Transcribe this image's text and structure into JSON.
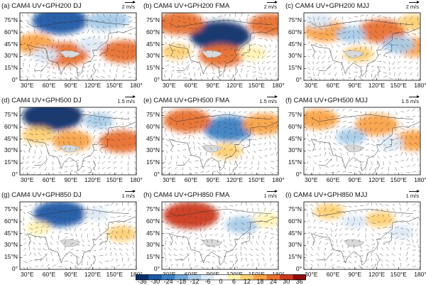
{
  "panels": [
    {
      "title": "(a) CAM4 UV+GPH200 DJ",
      "ref": "2 m/s",
      "lats": [
        "75°N",
        "60°N",
        "45°N",
        "30°N",
        "15°N",
        "0°"
      ],
      "lons": [
        "30°E",
        "60°E",
        "90°E",
        "120°E",
        "150°E",
        "180°"
      ],
      "anomalies": [
        {
          "lon": 75,
          "lat": 75,
          "v": -30
        },
        {
          "lon": 135,
          "lat": 74,
          "v": -14
        },
        {
          "lon": 150,
          "lat": 76,
          "v": -10
        },
        {
          "lon": 40,
          "lat": 46,
          "v": 18
        },
        {
          "lon": 82,
          "lat": 33,
          "v": 24
        },
        {
          "lon": 162,
          "lat": 36,
          "v": 22
        },
        {
          "lon": 118,
          "lat": 45,
          "v": -8
        },
        {
          "lon": 55,
          "lat": 32,
          "v": -8
        }
      ]
    },
    {
      "title": "(b) CAM4 UV+GPH200 FMA",
      "ref": "2 m/s",
      "lats": [
        "75°N",
        "60°N",
        "45°N",
        "30°N",
        "15°N",
        "0°"
      ],
      "lons": [
        "30°E",
        "60°E",
        "90°E",
        "120°E",
        "150°E",
        "180°"
      ],
      "anomalies": [
        {
          "lon": 100,
          "lat": 56,
          "v": -34
        },
        {
          "lon": 45,
          "lat": 72,
          "v": 24
        },
        {
          "lon": 170,
          "lat": 70,
          "v": 22
        },
        {
          "lon": 102,
          "lat": 31,
          "v": 22
        },
        {
          "lon": 40,
          "lat": 36,
          "v": 10
        },
        {
          "lon": 145,
          "lat": 34,
          "v": 8
        }
      ]
    },
    {
      "title": "(c) CAM4 UV+GPH200 MJJ",
      "ref": "2 m/s",
      "lats": [
        "75°N",
        "60°N",
        "45°N",
        "30°N",
        "15°N",
        "0°"
      ],
      "lons": [
        "30°E",
        "60°E",
        "90°E",
        "120°E",
        "150°E",
        "180°"
      ],
      "anomalies": [
        {
          "lon": 50,
          "lat": 62,
          "v": 20
        },
        {
          "lon": 127,
          "lat": 62,
          "v": 24
        },
        {
          "lon": 172,
          "lat": 42,
          "v": 16
        },
        {
          "lon": 150,
          "lat": 45,
          "v": -12
        },
        {
          "lon": 85,
          "lat": 58,
          "v": -10
        },
        {
          "lon": 95,
          "lat": 33,
          "v": 10
        },
        {
          "lon": 40,
          "lat": 75,
          "v": -8
        },
        {
          "lon": 170,
          "lat": 73,
          "v": 10
        }
      ]
    },
    {
      "title": "(d) CAM4 UV+GPH500 DJ",
      "ref": "1.5 m/s",
      "lats": [
        "75°N",
        "60°N",
        "45°N",
        "30°N",
        "15°N",
        "0°"
      ],
      "lons": [
        "30°E",
        "60°E",
        "90°E",
        "120°E",
        "150°E",
        "180°"
      ],
      "anomalies": [
        {
          "lon": 65,
          "lat": 74,
          "v": -34
        },
        {
          "lon": 92,
          "lat": 43,
          "v": 18
        },
        {
          "lon": 160,
          "lat": 42,
          "v": 22
        },
        {
          "lon": 45,
          "lat": 50,
          "v": 12
        },
        {
          "lon": 128,
          "lat": 68,
          "v": -10
        }
      ]
    },
    {
      "title": "(e) CAM4 UV+GPH500 FMA",
      "ref": "1.5 m/s",
      "lats": [
        "75°N",
        "60°N",
        "45°N",
        "30°N",
        "15°N",
        "0°"
      ],
      "lons": [
        "30°E",
        "60°E",
        "90°E",
        "120°E",
        "150°E",
        "180°"
      ],
      "anomalies": [
        {
          "lon": 112,
          "lat": 58,
          "v": -26
        },
        {
          "lon": 55,
          "lat": 68,
          "v": 24
        },
        {
          "lon": 160,
          "lat": 64,
          "v": 20
        },
        {
          "lon": 110,
          "lat": 30,
          "v": 10
        }
      ]
    },
    {
      "title": "(f) CAM4 UV+GPH500 MJJ",
      "ref": "1.5 m/s",
      "lats": [
        "75°N",
        "60°N",
        "45°N",
        "30°N",
        "15°N",
        "0°"
      ],
      "lons": [
        "30°E",
        "60°E",
        "90°E",
        "120°E",
        "150°E",
        "180°"
      ],
      "anomalies": [
        {
          "lon": 40,
          "lat": 70,
          "v": 18
        },
        {
          "lon": 120,
          "lat": 63,
          "v": 20
        },
        {
          "lon": 172,
          "lat": 43,
          "v": 18
        },
        {
          "lon": 85,
          "lat": 48,
          "v": -10
        },
        {
          "lon": 140,
          "lat": 40,
          "v": -6
        }
      ]
    },
    {
      "title": "(g) CAM4 UV+GPH850 DJ",
      "ref": "1 m/s",
      "lats": [
        "75°N",
        "60°N",
        "45°N",
        "30°N",
        "15°N",
        "0°"
      ],
      "lons": [
        "30°E",
        "60°E",
        "90°E",
        "120°E",
        "150°E",
        "180°"
      ],
      "anomalies": [
        {
          "lon": 75,
          "lat": 70,
          "v": -28
        },
        {
          "lon": 45,
          "lat": 52,
          "v": 6
        },
        {
          "lon": 160,
          "lat": 45,
          "v": 10
        },
        {
          "lon": 125,
          "lat": 70,
          "v": -6
        }
      ]
    },
    {
      "title": "(h) CAM4 UV+GPH850 FMA",
      "ref": "1 m/s",
      "lats": [
        "75°N",
        "60°N",
        "45°N",
        "30°N",
        "15°N",
        "0°"
      ],
      "lons": [
        "30°E",
        "60°E",
        "90°E",
        "120°E",
        "150°E",
        "180°"
      ],
      "anomalies": [
        {
          "lon": 60,
          "lat": 68,
          "v": 30
        },
        {
          "lon": 130,
          "lat": 56,
          "v": -12
        },
        {
          "lon": 165,
          "lat": 62,
          "v": 8
        }
      ]
    },
    {
      "title": "(i) CAM4 UV+GPH850 MJJ",
      "ref": "1 m/s",
      "lats": [
        "75°N",
        "60°N",
        "45°N",
        "30°N",
        "15°N",
        "0°"
      ],
      "lons": [
        "30°E",
        "60°E",
        "90°E",
        "120°E",
        "150°E",
        "180°"
      ],
      "anomalies": [
        {
          "lon": 55,
          "lat": 73,
          "v": 10
        },
        {
          "lon": 125,
          "lat": 63,
          "v": 10
        },
        {
          "lon": 90,
          "lat": 60,
          "v": -6
        },
        {
          "lon": 155,
          "lat": 47,
          "v": -6
        }
      ]
    }
  ],
  "colorbar": {
    "labels": [
      "-36",
      "-30",
      "-24",
      "-18",
      "-12",
      "-6",
      "0",
      "6",
      "12",
      "18",
      "24",
      "30",
      "36"
    ],
    "colors": [
      "#08306b",
      "#1c5aa6",
      "#3c7fc2",
      "#6ea4d6",
      "#a8cbe8",
      "#dce9f5",
      "#ffffff",
      "#fff2b3",
      "#fdcf72",
      "#f9a247",
      "#e8702e",
      "#cc3a1e",
      "#8f0f0f"
    ]
  }
}
